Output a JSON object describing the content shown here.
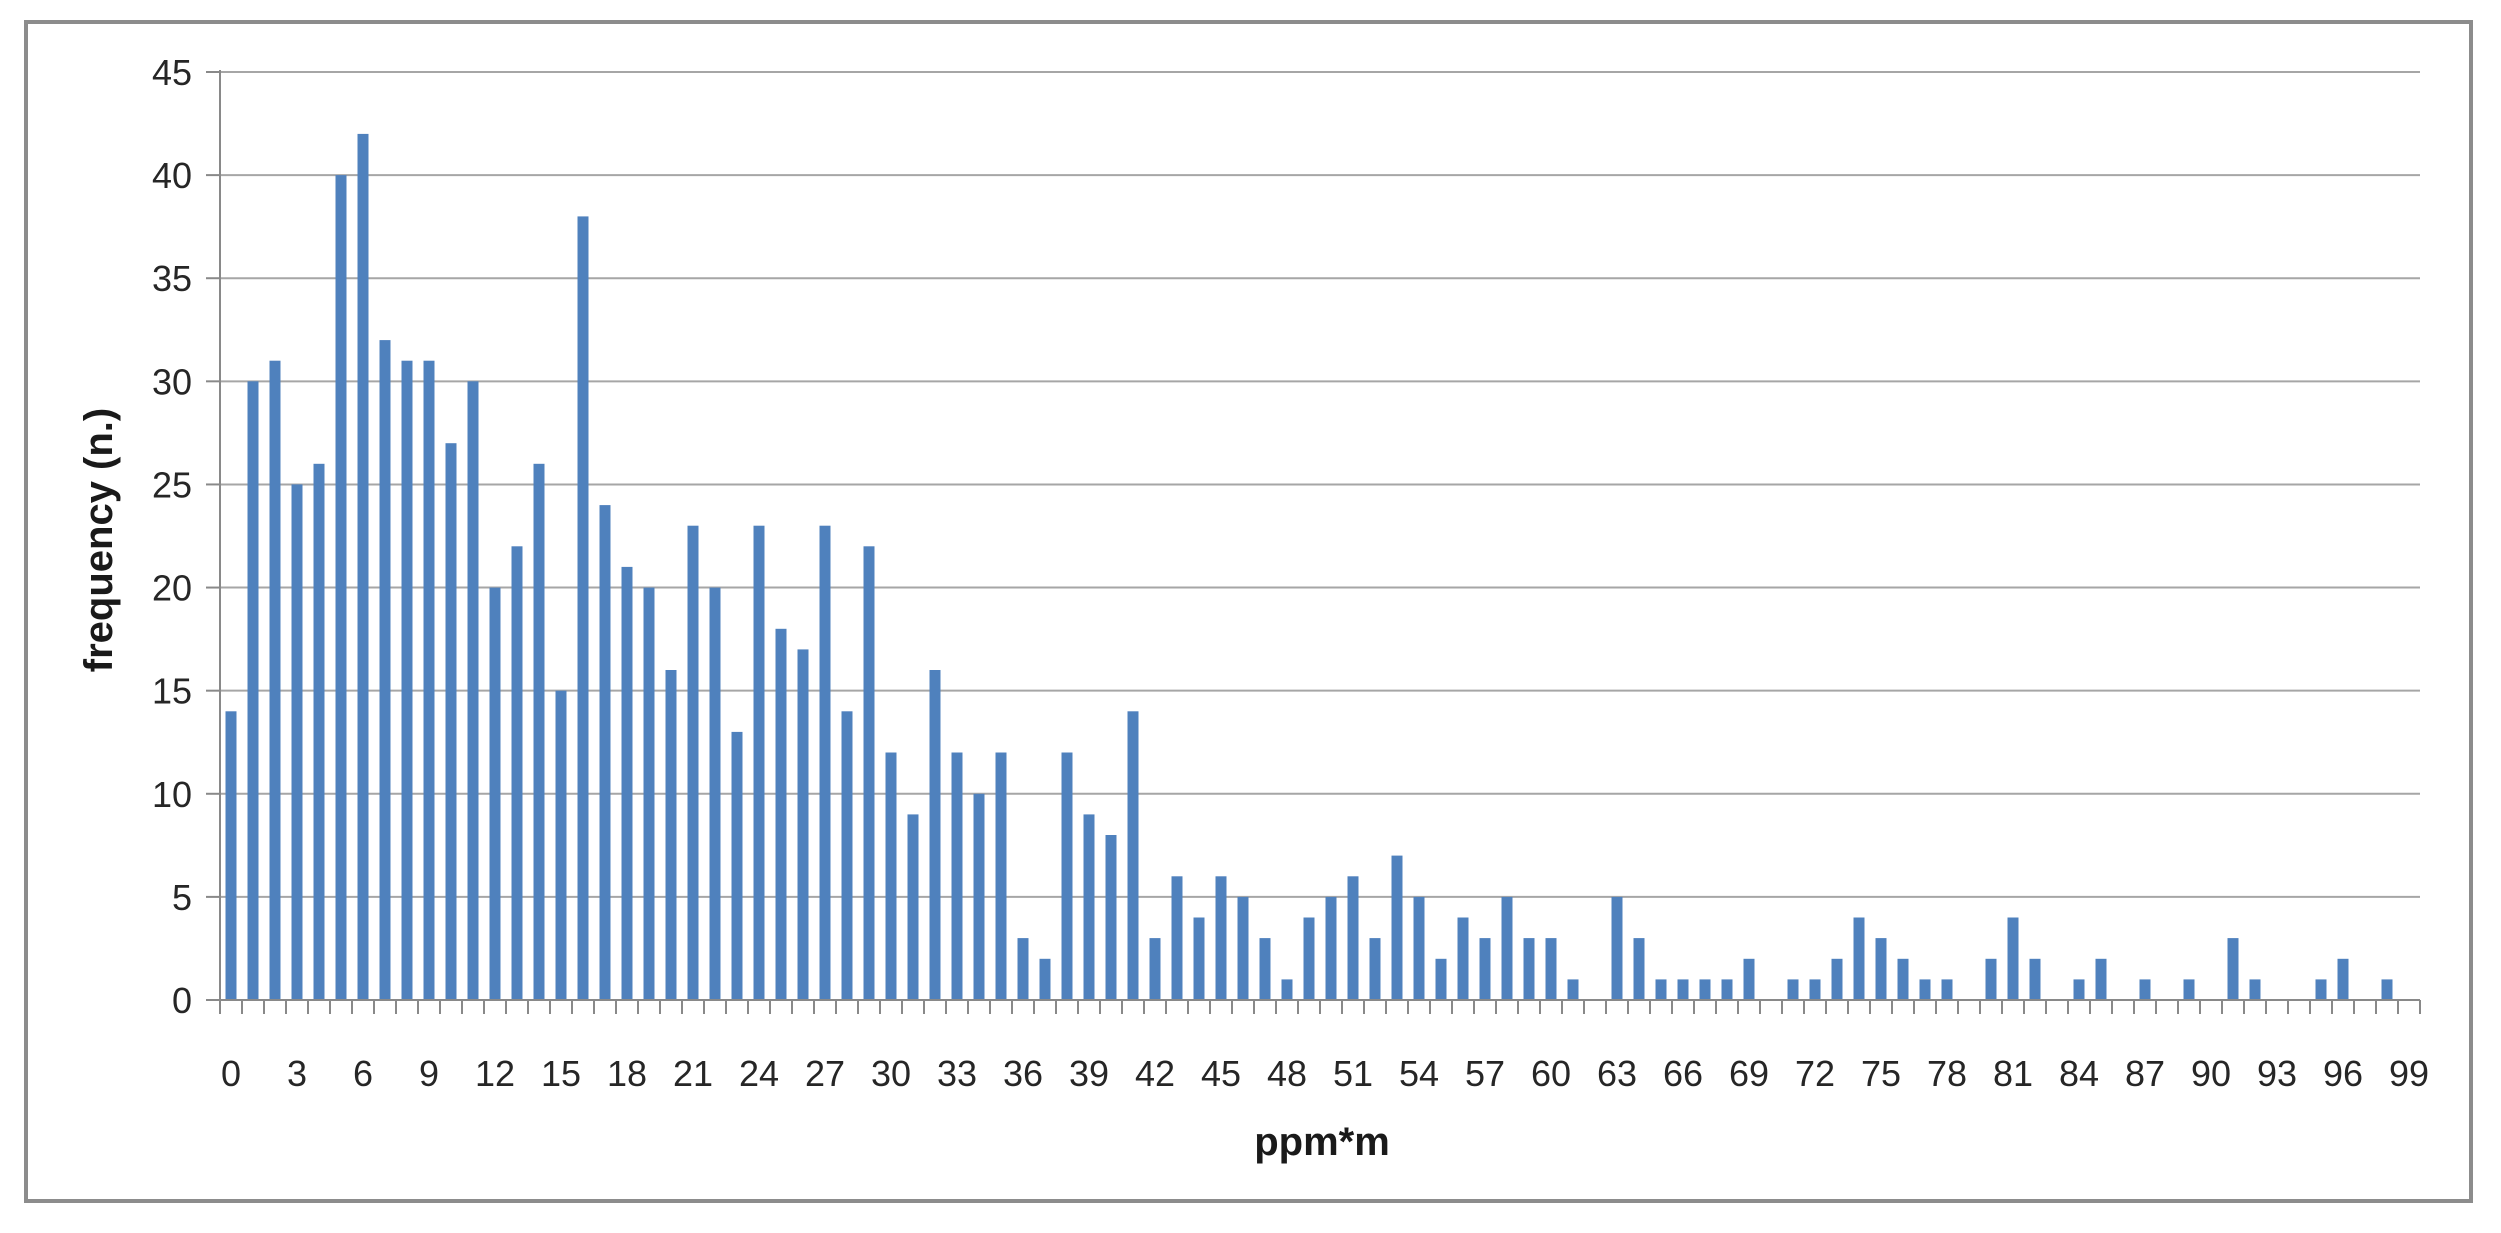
{
  "chart_data": {
    "type": "bar",
    "title": "",
    "xlabel": "ppm*m",
    "ylabel": "frequency (n.)",
    "categories": [
      0,
      1,
      2,
      3,
      4,
      5,
      6,
      7,
      8,
      9,
      10,
      11,
      12,
      13,
      14,
      15,
      16,
      17,
      18,
      19,
      20,
      21,
      22,
      23,
      24,
      25,
      26,
      27,
      28,
      29,
      30,
      31,
      32,
      33,
      34,
      35,
      36,
      37,
      38,
      39,
      40,
      41,
      42,
      43,
      44,
      45,
      46,
      47,
      48,
      49,
      50,
      51,
      52,
      53,
      54,
      55,
      56,
      57,
      58,
      59,
      60,
      61,
      62,
      63,
      64,
      65,
      66,
      67,
      68,
      69,
      70,
      71,
      72,
      73,
      74,
      75,
      76,
      77,
      78,
      79,
      80,
      81,
      82,
      83,
      84,
      85,
      86,
      87,
      88,
      89,
      90,
      91,
      92,
      93,
      94,
      95,
      96,
      97,
      98,
      99
    ],
    "values": [
      14,
      30,
      31,
      25,
      26,
      40,
      42,
      32,
      31,
      31,
      27,
      30,
      20,
      22,
      26,
      15,
      38,
      24,
      21,
      20,
      16,
      23,
      20,
      13,
      23,
      18,
      17,
      23,
      14,
      22,
      12,
      9,
      16,
      12,
      10,
      12,
      3,
      2,
      12,
      9,
      8,
      14,
      3,
      6,
      4,
      6,
      5,
      3,
      1,
      4,
      5,
      6,
      3,
      7,
      5,
      2,
      4,
      3,
      5,
      3,
      3,
      1,
      0,
      5,
      3,
      1,
      1,
      1,
      1,
      2,
      0,
      1,
      1,
      2,
      4,
      3,
      2,
      1,
      1,
      0,
      2,
      4,
      2,
      0,
      1,
      2,
      0,
      1,
      0,
      1,
      0,
      3,
      1,
      0,
      0,
      1,
      2,
      0,
      1,
      0
    ],
    "ylim": [
      0,
      45
    ],
    "y_ticks": [
      0,
      5,
      10,
      15,
      20,
      25,
      30,
      35,
      40,
      45
    ],
    "x_tick_step": 3,
    "grid": true,
    "legend": "none",
    "bar_color": "#4F81BD",
    "gridline_color": "#A6A6A6",
    "axis_color": "#898989",
    "tick_text_color": "#262626",
    "frame_color": "#8C8C8C"
  }
}
